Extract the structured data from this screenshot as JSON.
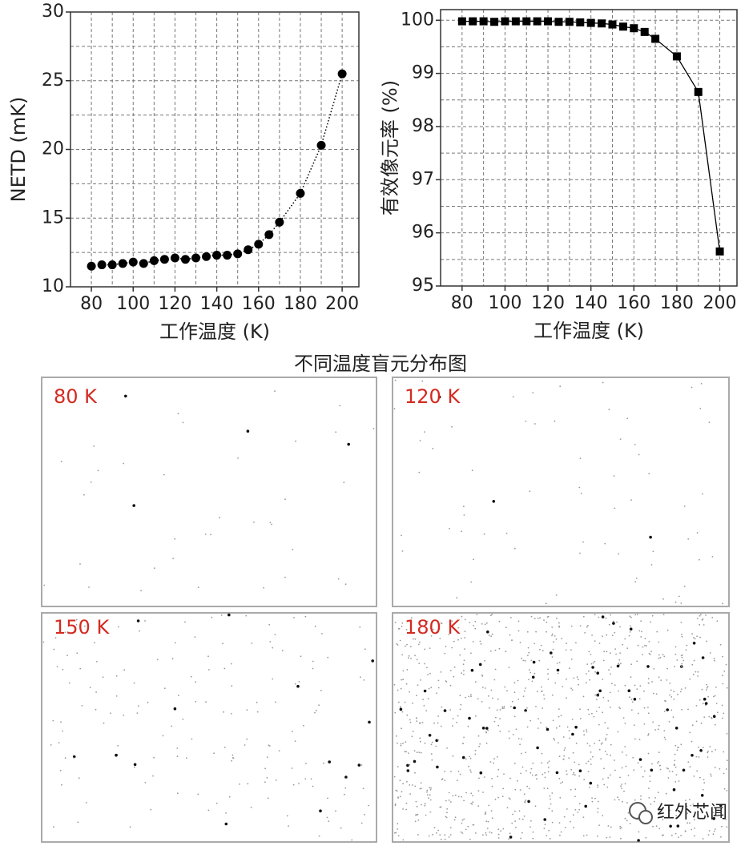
{
  "chart_data": [
    {
      "type": "line",
      "ylabel": "NETD (mK)",
      "xlabel": "工作温度 (K)",
      "x": [
        80,
        85,
        90,
        95,
        100,
        105,
        110,
        115,
        120,
        125,
        130,
        135,
        140,
        145,
        150,
        155,
        160,
        165,
        170,
        180,
        190,
        200
      ],
      "series": [
        {
          "name": "NETD",
          "color": "#000000",
          "marker": "circle",
          "line_style": "dotted",
          "values": [
            11.5,
            11.6,
            11.6,
            11.7,
            11.8,
            11.7,
            11.9,
            12.0,
            12.1,
            12.0,
            12.1,
            12.2,
            12.3,
            12.3,
            12.4,
            12.7,
            13.1,
            13.8,
            14.7,
            16.8,
            20.3,
            25.5
          ]
        }
      ],
      "xlim": [
        70,
        208
      ],
      "xticks": [
        80,
        100,
        120,
        140,
        160,
        180,
        200
      ],
      "ylim": [
        10,
        30
      ],
      "yticks": [
        10,
        15,
        20,
        25,
        30
      ],
      "grid": true
    },
    {
      "type": "line",
      "ylabel": "有效像元率 (%)",
      "xlabel": "工作温度 (K)",
      "x": [
        80,
        85,
        90,
        95,
        100,
        105,
        110,
        115,
        120,
        125,
        130,
        135,
        140,
        145,
        150,
        155,
        160,
        165,
        170,
        180,
        190,
        200
      ],
      "series": [
        {
          "name": "有效像元率",
          "color": "#000000",
          "marker": "square",
          "line_style": "solid",
          "values": [
            99.98,
            99.98,
            99.98,
            99.97,
            99.98,
            99.98,
            99.98,
            99.98,
            99.98,
            99.97,
            99.97,
            99.96,
            99.95,
            99.94,
            99.92,
            99.88,
            99.85,
            99.78,
            99.65,
            99.32,
            98.65,
            95.65
          ]
        }
      ],
      "xlim": [
        70,
        208
      ],
      "xticks": [
        80,
        100,
        120,
        140,
        160,
        180,
        200
      ],
      "ylim": [
        95,
        100.2
      ],
      "yticks": [
        95,
        96,
        97,
        98,
        99,
        100
      ],
      "grid": true
    }
  ],
  "maps": {
    "title": "不同温度盲元分布图",
    "panels": [
      "80 K",
      "120 K",
      "150 K",
      "180 K"
    ]
  },
  "watermark": "红外芯闻"
}
